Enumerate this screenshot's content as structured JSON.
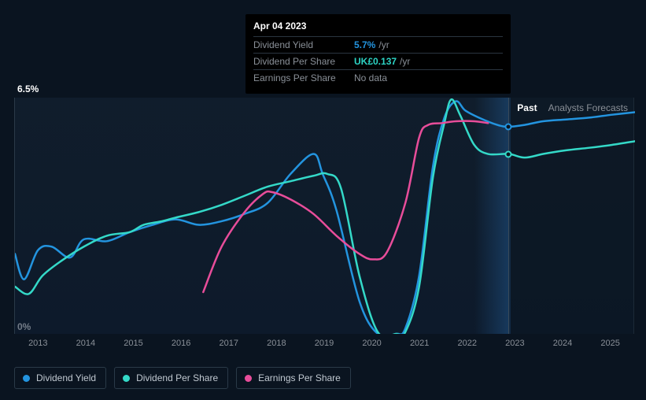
{
  "tooltip": {
    "date": "Apr 04 2023",
    "rows": [
      {
        "label": "Dividend Yield",
        "value": "5.7%",
        "unit": "/yr",
        "color_class": "blue"
      },
      {
        "label": "Dividend Per Share",
        "value": "UK£0.137",
        "unit": "/yr",
        "color_class": "teal"
      },
      {
        "label": "Earnings Per Share",
        "value": null,
        "nodata": "No data"
      }
    ]
  },
  "chart": {
    "type": "line",
    "y_top_label": "6.5%",
    "y_bot_label": "0%",
    "ylim": [
      0,
      6.5
    ],
    "background_color": "#0a1420",
    "plot_gradient": [
      "rgba(30,50,70,0.3)",
      "rgba(15,30,50,0.6)"
    ],
    "grid_color": "#2a3a48",
    "x_ticks": [
      "2013",
      "2014",
      "2015",
      "2016",
      "2017",
      "2018",
      "2019",
      "2020",
      "2021",
      "2022",
      "2023",
      "2024",
      "2025"
    ],
    "x_range_years": [
      2012.5,
      2026.0
    ],
    "section_labels": {
      "past": "Past",
      "forecast": "Analysts Forecasts"
    },
    "past_forecast_split_year": 2023.25,
    "highlight_band": {
      "start_year": 2022.5,
      "end_year": 2023.3
    },
    "line_width": 2.5,
    "font_size_axis": 11,
    "font_size_label": 12,
    "series": [
      {
        "name": "Dividend Yield",
        "color": "#2394df",
        "marker": {
          "year": 2023.25,
          "y": 5.7
        },
        "points": [
          [
            2012.5,
            2.2
          ],
          [
            2012.7,
            1.5
          ],
          [
            2013.0,
            2.3
          ],
          [
            2013.3,
            2.4
          ],
          [
            2013.7,
            2.1
          ],
          [
            2014.0,
            2.6
          ],
          [
            2014.5,
            2.55
          ],
          [
            2015.0,
            2.8
          ],
          [
            2015.5,
            3.0
          ],
          [
            2016.0,
            3.15
          ],
          [
            2016.5,
            3.0
          ],
          [
            2017.0,
            3.1
          ],
          [
            2017.5,
            3.3
          ],
          [
            2018.0,
            3.6
          ],
          [
            2018.5,
            4.4
          ],
          [
            2019.0,
            4.95
          ],
          [
            2019.2,
            4.4
          ],
          [
            2019.5,
            3.4
          ],
          [
            2020.0,
            0.9
          ],
          [
            2020.4,
            0.0
          ],
          [
            2020.8,
            0.0
          ],
          [
            2021.0,
            0.15
          ],
          [
            2021.3,
            1.6
          ],
          [
            2021.6,
            4.6
          ],
          [
            2021.85,
            5.95
          ],
          [
            2022.1,
            6.4
          ],
          [
            2022.3,
            6.15
          ],
          [
            2022.6,
            5.95
          ],
          [
            2023.0,
            5.75
          ],
          [
            2023.25,
            5.7
          ],
          [
            2023.6,
            5.75
          ],
          [
            2024.0,
            5.85
          ],
          [
            2024.5,
            5.9
          ],
          [
            2025.0,
            5.95
          ],
          [
            2025.5,
            6.03
          ],
          [
            2026.0,
            6.1
          ]
        ]
      },
      {
        "name": "Dividend Per Share",
        "color": "#34d9c8",
        "marker": {
          "year": 2023.25,
          "y": 4.95
        },
        "points": [
          [
            2012.5,
            1.3
          ],
          [
            2012.8,
            1.1
          ],
          [
            2013.1,
            1.6
          ],
          [
            2013.5,
            2.0
          ],
          [
            2014.0,
            2.4
          ],
          [
            2014.5,
            2.7
          ],
          [
            2015.0,
            2.8
          ],
          [
            2015.3,
            3.0
          ],
          [
            2015.7,
            3.1
          ],
          [
            2016.0,
            3.2
          ],
          [
            2016.5,
            3.35
          ],
          [
            2017.0,
            3.55
          ],
          [
            2017.5,
            3.8
          ],
          [
            2018.0,
            4.05
          ],
          [
            2018.5,
            4.2
          ],
          [
            2019.0,
            4.35
          ],
          [
            2019.3,
            4.4
          ],
          [
            2019.6,
            4.0
          ],
          [
            2020.0,
            1.6
          ],
          [
            2020.4,
            0.05
          ],
          [
            2020.8,
            0.0
          ],
          [
            2021.0,
            0.05
          ],
          [
            2021.3,
            1.3
          ],
          [
            2021.6,
            4.3
          ],
          [
            2021.85,
            5.8
          ],
          [
            2022.0,
            6.45
          ],
          [
            2022.2,
            6.0
          ],
          [
            2022.5,
            5.2
          ],
          [
            2022.8,
            4.95
          ],
          [
            2023.25,
            4.95
          ],
          [
            2023.6,
            4.85
          ],
          [
            2024.0,
            4.95
          ],
          [
            2024.5,
            5.05
          ],
          [
            2025.0,
            5.12
          ],
          [
            2025.5,
            5.2
          ],
          [
            2026.0,
            5.3
          ]
        ]
      },
      {
        "name": "Earnings Per Share",
        "color": "#e84d9a",
        "points": [
          [
            2016.6,
            1.15
          ],
          [
            2017.0,
            2.4
          ],
          [
            2017.5,
            3.35
          ],
          [
            2017.9,
            3.85
          ],
          [
            2018.1,
            3.9
          ],
          [
            2018.5,
            3.7
          ],
          [
            2019.0,
            3.3
          ],
          [
            2019.5,
            2.7
          ],
          [
            2020.0,
            2.2
          ],
          [
            2020.3,
            2.05
          ],
          [
            2020.6,
            2.25
          ],
          [
            2021.0,
            3.6
          ],
          [
            2021.3,
            5.4
          ],
          [
            2021.5,
            5.75
          ],
          [
            2021.8,
            5.8
          ],
          [
            2022.1,
            5.85
          ],
          [
            2022.5,
            5.85
          ],
          [
            2022.8,
            5.8
          ]
        ]
      }
    ]
  },
  "legend": {
    "items": [
      {
        "label": "Dividend Yield",
        "color": "#2394df"
      },
      {
        "label": "Dividend Per Share",
        "color": "#34d9c8"
      },
      {
        "label": "Earnings Per Share",
        "color": "#e84d9a"
      }
    ]
  }
}
